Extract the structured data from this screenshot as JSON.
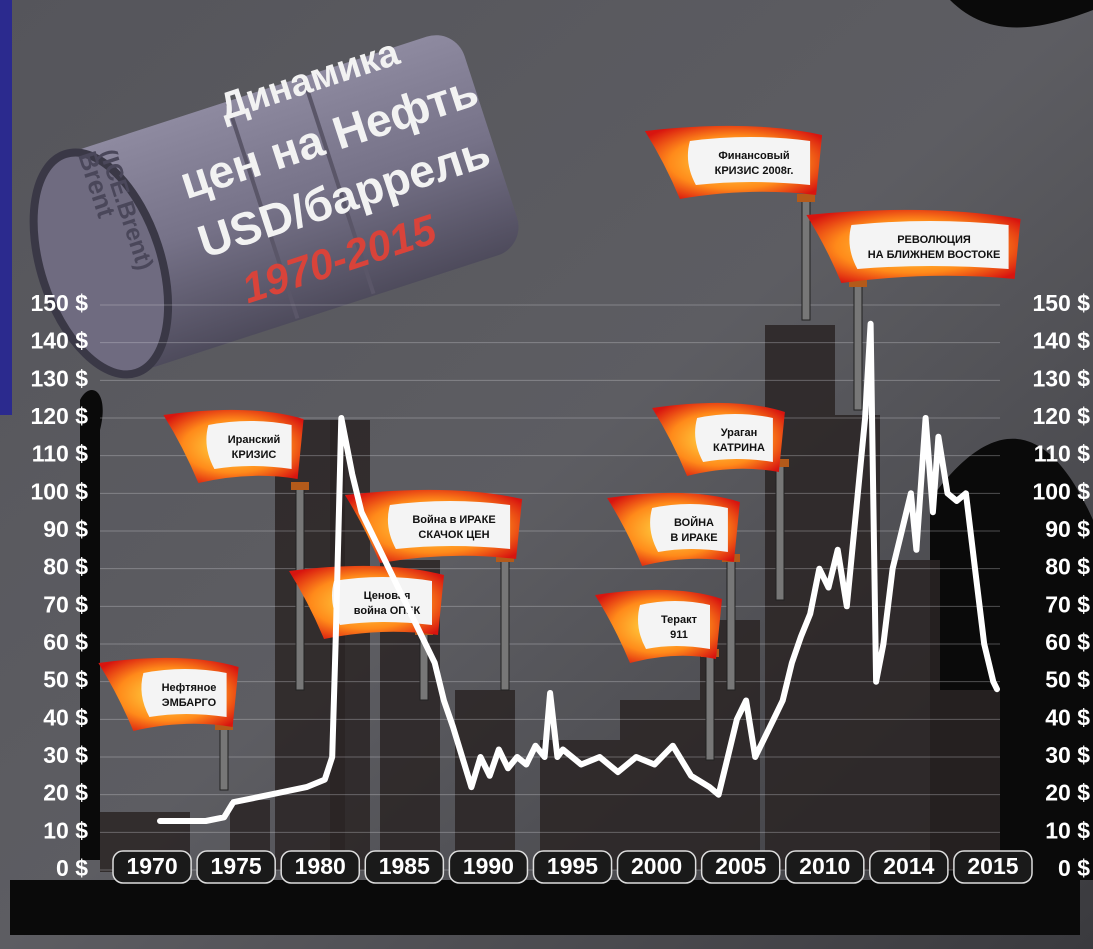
{
  "chart_data": {
    "type": "line",
    "title": [
      "Динамика",
      "цен на Нефть",
      "USD/баррель"
    ],
    "subtitle": "1970-2015",
    "barrel_label": [
      "Brent",
      "(ICE.Brent)"
    ],
    "categories": [
      "1970",
      "1975",
      "1980",
      "1985",
      "1990",
      "1995",
      "2000",
      "2005",
      "2010",
      "2014",
      "2015"
    ],
    "x": [
      1970,
      1972.5,
      1973.5,
      1974,
      1976,
      1978,
      1979,
      1979.4,
      1979.6,
      1979.9,
      1980.5,
      1981,
      1982,
      1983,
      1984,
      1985,
      1985.5,
      1986,
      1986.5,
      1987,
      1987.5,
      1988,
      1988.5,
      1989,
      1989.5,
      1990,
      1990.5,
      1991,
      1991.3,
      1991.7,
      1992,
      1993,
      1994,
      1995,
      1996,
      1997,
      1998,
      1999,
      2000,
      2000.5,
      2001,
      2001.5,
      2002,
      2002.5,
      2003,
      2003.5,
      2004,
      2004.5,
      2005,
      2005.5,
      2006,
      2006.5,
      2007,
      2007.5,
      2008,
      2008.5,
      2008.8,
      2009.1,
      2009.5,
      2010,
      2010.5,
      2011,
      2011.3,
      2011.8,
      2012.2,
      2012.5,
      2013,
      2013.5,
      2014,
      2014.5,
      2015,
      2015.5,
      2015.7
    ],
    "values": [
      13,
      13,
      14,
      18,
      20,
      22,
      24,
      30,
      62,
      120,
      105,
      95,
      85,
      75,
      65,
      55,
      45,
      38,
      30,
      22,
      30,
      25,
      32,
      27,
      30,
      28,
      33,
      30,
      47,
      30,
      32,
      28,
      30,
      26,
      30,
      28,
      33,
      25,
      22,
      20,
      30,
      40,
      45,
      30,
      35,
      40,
      45,
      55,
      62,
      68,
      80,
      75,
      85,
      70,
      95,
      120,
      145,
      50,
      60,
      80,
      90,
      100,
      85,
      120,
      95,
      115,
      100,
      98,
      100,
      80,
      60,
      50,
      48
    ],
    "color": "#ffffff",
    "xlim": [
      1970,
      2015.7
    ],
    "ylim": [
      0,
      150
    ],
    "yticks": [
      {
        "value": 0,
        "label": "0 $"
      },
      {
        "value": 10,
        "label": "10 $"
      },
      {
        "value": 20,
        "label": "20 $"
      },
      {
        "value": 30,
        "label": "30 $"
      },
      {
        "value": 40,
        "label": "40 $"
      },
      {
        "value": 50,
        "label": "50 $"
      },
      {
        "value": 60,
        "label": "60 $"
      },
      {
        "value": 70,
        "label": "70 $"
      },
      {
        "value": 80,
        "label": "80 $"
      },
      {
        "value": 90,
        "label": "90 $"
      },
      {
        "value": 100,
        "label": "100 $"
      },
      {
        "value": 110,
        "label": "110 $"
      },
      {
        "value": 120,
        "label": "120 $"
      },
      {
        "value": 130,
        "label": "130 $"
      },
      {
        "value": 140,
        "label": "140 $"
      },
      {
        "value": 150,
        "label": "150 $"
      }
    ],
    "grid": true,
    "annotations": [
      {
        "text": [
          "Нефтяное",
          "ЭМБАРГО"
        ]
      },
      {
        "text": [
          "Иранский",
          "КРИЗИС"
        ]
      },
      {
        "text": [
          "Ценовая",
          "война ОПЕК"
        ]
      },
      {
        "text": [
          "Война в ИРАКЕ",
          "СКАЧОК ЦЕН"
        ]
      },
      {
        "text": [
          "Теракт",
          "911"
        ]
      },
      {
        "text": [
          "ВОЙНА",
          "В ИРАКЕ"
        ]
      },
      {
        "text": [
          "Ураган",
          "КАТРИНА"
        ]
      },
      {
        "text": [
          "Финансовый",
          "КРИЗИС 2008г."
        ]
      },
      {
        "text": [
          "РЕВОЛЮЦИЯ",
          "НА БЛИЖНЕМ ВОСТОКЕ"
        ]
      }
    ]
  }
}
